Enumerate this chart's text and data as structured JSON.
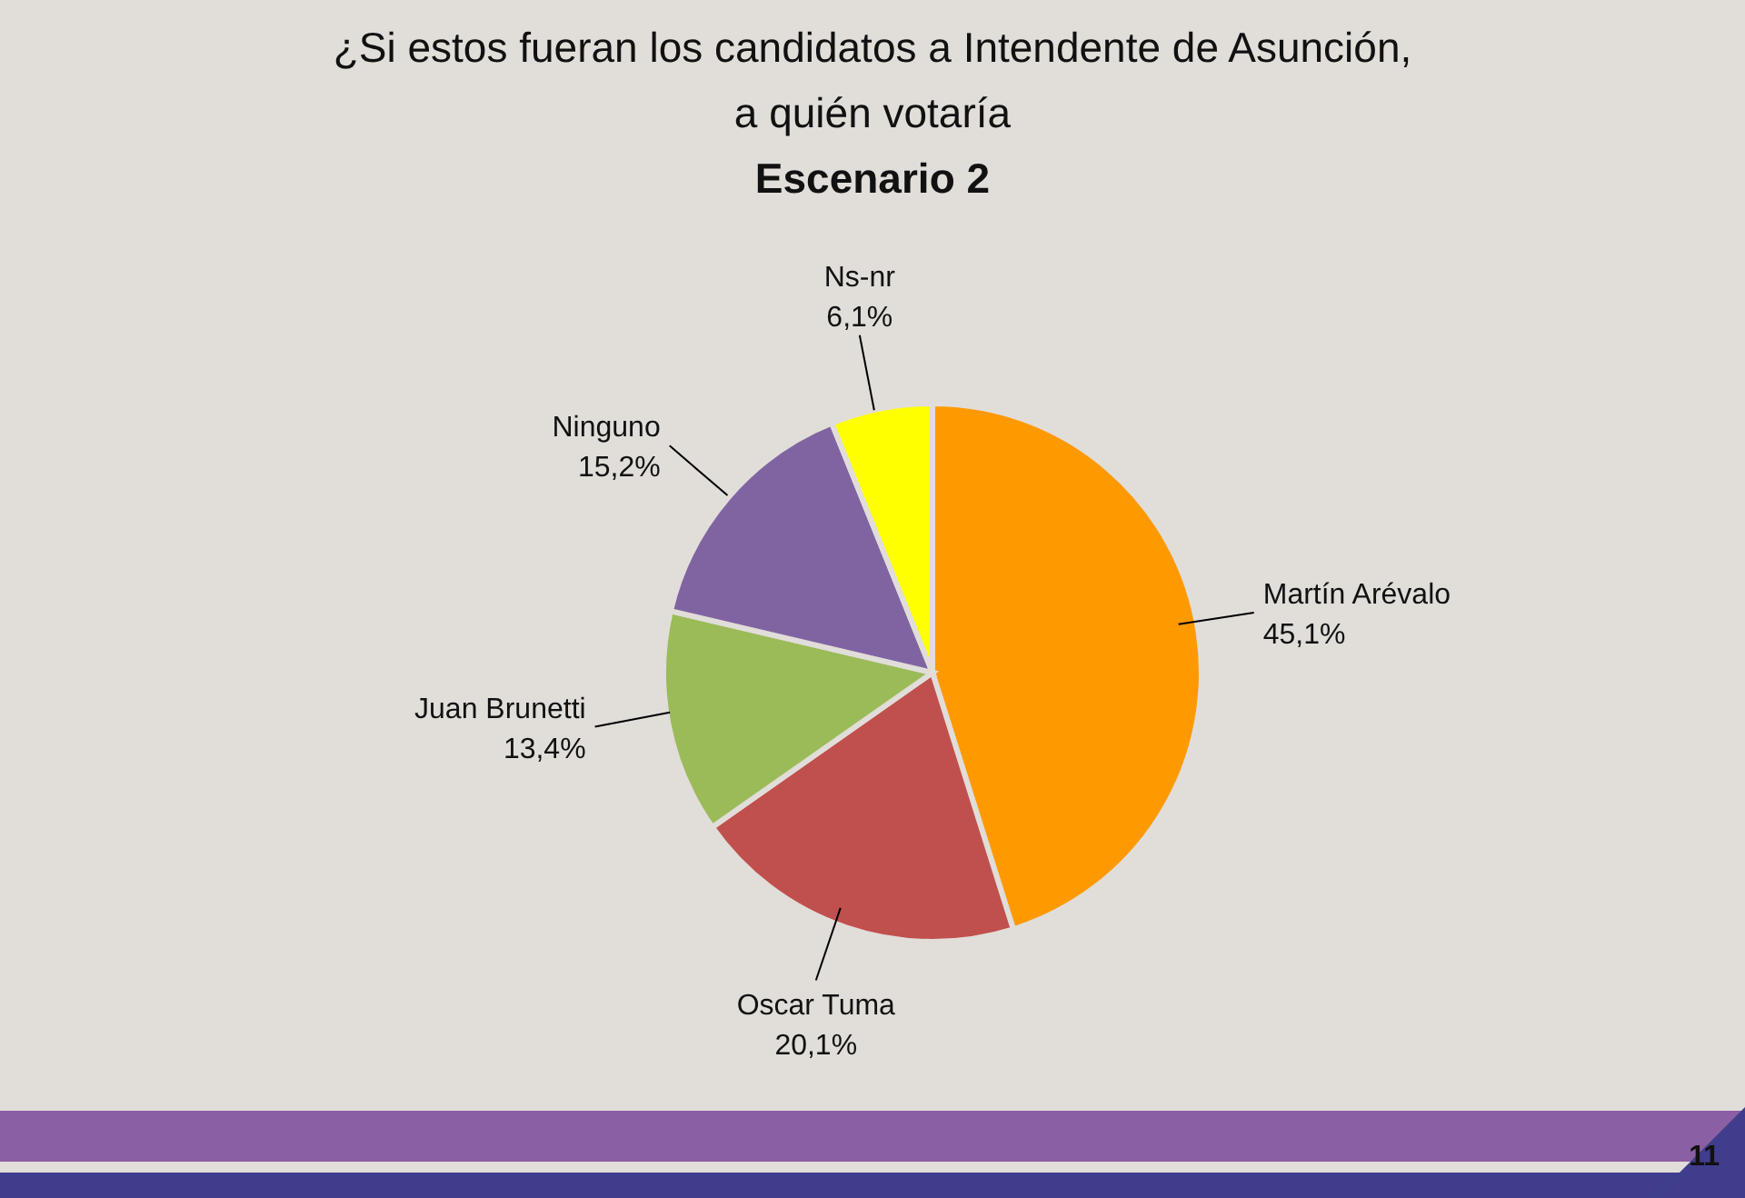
{
  "chart_data": {
    "type": "pie",
    "title": "¿Si estos fueran los candidatos a Intendente de Asunción,\na quién votaría",
    "subtitle": "Escenario 2",
    "categories": [
      "Martín Arévalo",
      "Oscar Tuma",
      "Juan Brunetti",
      "Ninguno",
      "Ns-nr"
    ],
    "values": [
      45.1,
      20.1,
      13.4,
      15.2,
      6.1
    ],
    "colors": [
      "#ff9900",
      "#c0504d",
      "#9bbb59",
      "#8064a2",
      "#ffff00"
    ],
    "value_labels": [
      "45,1%",
      "20,1%",
      "13,4%",
      "15,2%",
      "6,1%"
    ],
    "annotations": [
      "11"
    ]
  }
}
